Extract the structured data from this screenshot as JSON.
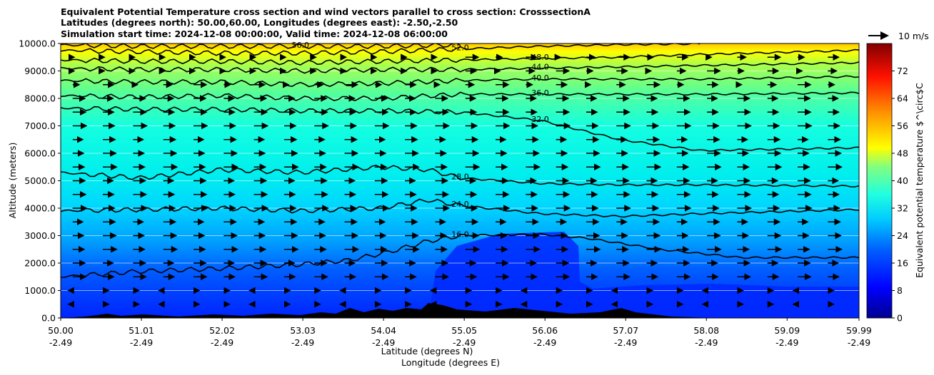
{
  "chart_data": {
    "type": "contour",
    "title_lines": [
      "Equivalent Potential Temperature cross section and wind vectors parallel to cross section: CrosssectionA",
      "Latitudes (degrees north): 50.00,60.00, Longitudes (degrees east): -2.50,-2.50",
      "Simulation start time: 2024-12-08 00:00:00, Valid time: 2024-12-08 06:00:00"
    ],
    "xlabel_lat": "Latitude (degrees N)",
    "xlabel_lon": "Longitude (degrees E)",
    "ylabel": "Altitude (meters)",
    "xlim": [
      50.0,
      59.99
    ],
    "ylim": [
      0,
      10000
    ],
    "x_ticks": [
      {
        "lat": "50.00",
        "lon": "-2.49",
        "v": 50.0
      },
      {
        "lat": "51.01",
        "lon": "-2.49",
        "v": 51.01
      },
      {
        "lat": "52.02",
        "lon": "-2.49",
        "v": 52.02
      },
      {
        "lat": "53.03",
        "lon": "-2.49",
        "v": 53.03
      },
      {
        "lat": "54.04",
        "lon": "-2.49",
        "v": 54.04
      },
      {
        "lat": "55.05",
        "lon": "-2.49",
        "v": 55.05
      },
      {
        "lat": "56.06",
        "lon": "-2.49",
        "v": 56.06
      },
      {
        "lat": "57.07",
        "lon": "-2.49",
        "v": 57.07
      },
      {
        "lat": "58.08",
        "lon": "-2.49",
        "v": 58.08
      },
      {
        "lat": "59.09",
        "lon": "-2.49",
        "v": 59.09
      },
      {
        "lat": "59.99",
        "lon": "-2.49",
        "v": 59.99
      }
    ],
    "y_ticks": [
      {
        "label": "0.0",
        "v": 0
      },
      {
        "label": "1000.0",
        "v": 1000
      },
      {
        "label": "2000.0",
        "v": 2000
      },
      {
        "label": "3000.0",
        "v": 3000
      },
      {
        "label": "4000.0",
        "v": 4000
      },
      {
        "label": "5000.0",
        "v": 5000
      },
      {
        "label": "6000.0",
        "v": 6000
      },
      {
        "label": "7000.0",
        "v": 7000
      },
      {
        "label": "8000.0",
        "v": 8000
      },
      {
        "label": "9000.0",
        "v": 9000
      },
      {
        "label": "10000.0",
        "v": 10000
      }
    ],
    "colorbar": {
      "label": "Equivalent potential temperature $^\\circ$C",
      "range": [
        0,
        80
      ],
      "ticks": [
        "0",
        "8",
        "16",
        "24",
        "32",
        "40",
        "48",
        "56",
        "64",
        "72"
      ],
      "tick_values": [
        0,
        8,
        16,
        24,
        32,
        40,
        48,
        56,
        64,
        72
      ]
    },
    "quiver_key": "10 m/s",
    "grid": "horizontal",
    "contours": [
      {
        "label": "16.0",
        "level": 16,
        "points": [
          [
            50.0,
            1500
          ],
          [
            51.0,
            1700
          ],
          [
            52.0,
            1800
          ],
          [
            53.0,
            1950
          ],
          [
            53.6,
            2100
          ],
          [
            54.1,
            2400
          ],
          [
            54.6,
            2800
          ],
          [
            55.0,
            3000
          ],
          [
            56.0,
            3050
          ],
          [
            56.6,
            2900
          ],
          [
            57.5,
            2500
          ],
          [
            58.5,
            2200
          ],
          [
            59.99,
            2200
          ]
        ]
      },
      {
        "label": "24.0",
        "level": 24,
        "points": [
          [
            50.0,
            3900
          ],
          [
            51.0,
            3950
          ],
          [
            52.0,
            4000
          ],
          [
            53.0,
            3900
          ],
          [
            54.0,
            4000
          ],
          [
            54.6,
            4300
          ],
          [
            55.0,
            4100
          ],
          [
            56.0,
            3800
          ],
          [
            57.0,
            3700
          ],
          [
            58.0,
            3800
          ],
          [
            59.99,
            3950
          ]
        ]
      },
      {
        "label": "28.0",
        "level": 28,
        "points": [
          [
            50.0,
            5300
          ],
          [
            51.0,
            5100
          ],
          [
            52.0,
            5400
          ],
          [
            53.0,
            5300
          ],
          [
            54.0,
            5500
          ],
          [
            54.6,
            5400
          ],
          [
            55.0,
            5100
          ],
          [
            56.0,
            4900
          ],
          [
            57.0,
            4850
          ],
          [
            58.0,
            4850
          ],
          [
            59.99,
            4800
          ]
        ]
      },
      {
        "label": "32.0",
        "level": 32,
        "points": [
          [
            50.0,
            7650
          ],
          [
            51.0,
            7600
          ],
          [
            52.0,
            7600
          ],
          [
            53.0,
            7550
          ],
          [
            54.0,
            7550
          ],
          [
            55.0,
            7500
          ],
          [
            56.0,
            7200
          ],
          [
            57.0,
            6500
          ],
          [
            58.0,
            6100
          ],
          [
            59.99,
            6200
          ]
        ]
      },
      {
        "label": "36.0",
        "level": 36,
        "points": [
          [
            50.0,
            8100
          ],
          [
            51.0,
            8050
          ],
          [
            52.0,
            8100
          ],
          [
            53.0,
            8000
          ],
          [
            54.0,
            8000
          ],
          [
            55.0,
            8150
          ],
          [
            56.0,
            8150
          ],
          [
            57.0,
            8150
          ],
          [
            58.0,
            8150
          ],
          [
            59.99,
            8200
          ]
        ]
      },
      {
        "label": "40.0",
        "level": 40,
        "points": [
          [
            50.0,
            8650
          ],
          [
            51.0,
            8600
          ],
          [
            52.0,
            8600
          ],
          [
            53.0,
            8500
          ],
          [
            54.0,
            8550
          ],
          [
            55.0,
            8650
          ],
          [
            56.0,
            8700
          ],
          [
            57.0,
            8700
          ],
          [
            58.0,
            8700
          ],
          [
            59.99,
            8800
          ]
        ]
      },
      {
        "label": "44.0",
        "level": 44,
        "points": [
          [
            50.0,
            9100
          ],
          [
            51.0,
            9050
          ],
          [
            52.0,
            9050
          ],
          [
            53.0,
            9000
          ],
          [
            54.0,
            9050
          ],
          [
            55.0,
            9050
          ],
          [
            56.0,
            9100
          ],
          [
            57.0,
            9150
          ],
          [
            58.0,
            9200
          ],
          [
            59.99,
            9300
          ]
        ]
      },
      {
        "label": "48.0",
        "level": 48,
        "points": [
          [
            50.0,
            9400
          ],
          [
            51.0,
            9350
          ],
          [
            52.0,
            9350
          ],
          [
            53.0,
            9300
          ],
          [
            54.0,
            9350
          ],
          [
            55.0,
            9400
          ],
          [
            56.0,
            9450
          ],
          [
            57.0,
            9500
          ],
          [
            58.0,
            9600
          ],
          [
            59.99,
            9750
          ]
        ]
      },
      {
        "label": "52.0",
        "level": 52,
        "points": [
          [
            50.0,
            9750
          ],
          [
            51.0,
            9700
          ],
          [
            52.0,
            9650
          ],
          [
            53.0,
            9650
          ],
          [
            54.0,
            9700
          ],
          [
            55.0,
            9800
          ],
          [
            56.0,
            9900
          ],
          [
            57.0,
            9960
          ],
          [
            58.0,
            9990
          ]
        ]
      },
      {
        "label": "56.0",
        "level": 56,
        "points": [
          [
            50.0,
            9950
          ],
          [
            51.0,
            9900
          ],
          [
            52.0,
            9900
          ],
          [
            53.0,
            9900
          ],
          [
            54.0,
            9900
          ],
          [
            55.0,
            9950
          ]
        ]
      }
    ]
  }
}
